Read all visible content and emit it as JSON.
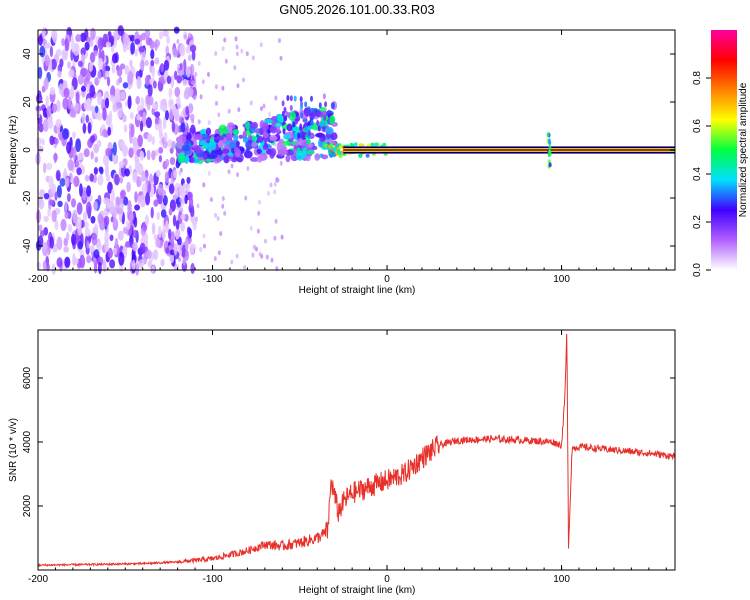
{
  "chart_data": [
    {
      "type": "heatmap",
      "title": "GN05.2026.101.00.33.R03",
      "xlabel": "Height of straight line (km)",
      "ylabel": "Frequency (Hz)",
      "xlim": [
        -200,
        165
      ],
      "ylim": [
        -50,
        50
      ],
      "xticks": [
        "-200",
        "-100",
        "0",
        "100"
      ],
      "yticks": [
        "40",
        "20",
        "0",
        "-20",
        "-40"
      ],
      "colorbar": {
        "label": "Normalized spectral amplitude",
        "range": [
          0,
          1
        ],
        "ticks": [
          "0.0",
          "0.2",
          "0.4",
          "0.6",
          "0.8"
        ],
        "colors": [
          "#ffffff",
          "#b060ff",
          "#4000ff",
          "#00e0ff",
          "#00ff40",
          "#ffff00",
          "#ff8000",
          "#ff0000",
          "#ff00a0"
        ]
      },
      "features": {
        "line_from_km": -25,
        "line_to_km": 165,
        "line_frequency_hz": 0,
        "line_amplitude": 0.9,
        "spike_at_km": 93,
        "spike_amplitude": 0.5,
        "diffuse_noise_from_km": -200,
        "diffuse_noise_to_km": -120,
        "noise_amplitude": 0.25,
        "cluster_from_km": -120,
        "cluster_to_km": -30,
        "cluster_amplitude": 0.4
      }
    },
    {
      "type": "line",
      "xlabel": "Height of straight line (km)",
      "ylabel": "SNR (10 * v/v)",
      "xlim": [
        -200,
        165
      ],
      "ylim": [
        0,
        7500
      ],
      "xticks": [
        "-200",
        "-100",
        "0",
        "100"
      ],
      "yticks": [
        "2000",
        "4000",
        "6000"
      ],
      "series": [
        {
          "name": "SNR",
          "color": "#e8302a",
          "x": [
            -200,
            -160,
            -140,
            -120,
            -100,
            -80,
            -70,
            -60,
            -50,
            -40,
            -34,
            -32,
            -28,
            -24,
            -20,
            -10,
            0,
            10,
            20,
            30,
            40,
            60,
            80,
            95,
            100,
            102,
            103,
            104,
            106,
            110,
            130,
            150,
            165
          ],
          "values": [
            150,
            180,
            200,
            250,
            350,
            600,
            800,
            750,
            850,
            1000,
            1200,
            2800,
            1800,
            2200,
            2400,
            2600,
            2800,
            3000,
            3500,
            3900,
            4050,
            4100,
            4050,
            4000,
            3900,
            5500,
            7500,
            700,
            3800,
            3850,
            3750,
            3650,
            3550
          ]
        }
      ]
    }
  ]
}
